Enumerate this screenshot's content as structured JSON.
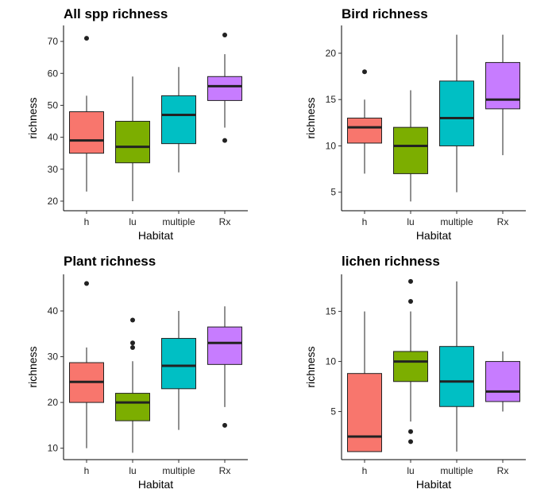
{
  "chart_data": [
    {
      "type": "boxplot",
      "title": "All spp richness",
      "xlabel": "Habitat",
      "ylabel": "richness",
      "categories": [
        "h",
        "lu",
        "multiple",
        "Rx"
      ],
      "ylim": [
        17,
        75
      ],
      "yticks": [
        20,
        30,
        40,
        50,
        60,
        70
      ],
      "colors": [
        "#F8766D",
        "#7CAE00",
        "#00BFC4",
        "#C77CFF"
      ],
      "boxes": [
        {
          "low": 23,
          "q1": 35,
          "median": 39,
          "q3": 48,
          "high": 53,
          "outliers": [
            71
          ]
        },
        {
          "low": 20,
          "q1": 32,
          "median": 37,
          "q3": 45,
          "high": 59,
          "outliers": []
        },
        {
          "low": 29,
          "q1": 38,
          "median": 47,
          "q3": 53,
          "high": 62,
          "outliers": []
        },
        {
          "low": 43,
          "q1": 51.5,
          "median": 56,
          "q3": 59,
          "high": 66,
          "outliers": [
            39,
            72
          ]
        }
      ]
    },
    {
      "type": "boxplot",
      "title": "Bird richness",
      "xlabel": "Habitat",
      "ylabel": "richness",
      "categories": [
        "h",
        "lu",
        "multiple",
        "Rx"
      ],
      "ylim": [
        3,
        23
      ],
      "yticks": [
        5,
        10,
        15,
        20
      ],
      "colors": [
        "#F8766D",
        "#7CAE00",
        "#00BFC4",
        "#C77CFF"
      ],
      "boxes": [
        {
          "low": 7,
          "q1": 10.3,
          "median": 12,
          "q3": 13,
          "high": 15,
          "outliers": [
            18
          ]
        },
        {
          "low": 4,
          "q1": 7,
          "median": 10,
          "q3": 12,
          "high": 16,
          "outliers": []
        },
        {
          "low": 5,
          "q1": 10,
          "median": 13,
          "q3": 17,
          "high": 22,
          "outliers": []
        },
        {
          "low": 9,
          "q1": 14,
          "median": 15,
          "q3": 19,
          "high": 22,
          "outliers": []
        }
      ]
    },
    {
      "type": "boxplot",
      "title": "Plant richness",
      "xlabel": "Habitat",
      "ylabel": "richness",
      "categories": [
        "h",
        "lu",
        "multiple",
        "Rx"
      ],
      "ylim": [
        7.5,
        48
      ],
      "yticks": [
        10,
        20,
        30,
        40
      ],
      "colors": [
        "#F8766D",
        "#7CAE00",
        "#00BFC4",
        "#C77CFF"
      ],
      "boxes": [
        {
          "low": 10,
          "q1": 20,
          "median": 24.5,
          "q3": 28.7,
          "high": 32,
          "outliers": [
            46
          ]
        },
        {
          "low": 9,
          "q1": 16,
          "median": 20,
          "q3": 22,
          "high": 29,
          "outliers": [
            32,
            33,
            38
          ]
        },
        {
          "low": 14,
          "q1": 23,
          "median": 28,
          "q3": 34,
          "high": 40,
          "outliers": []
        },
        {
          "low": 19,
          "q1": 28.3,
          "median": 33,
          "q3": 36.5,
          "high": 41,
          "outliers": [
            15
          ]
        }
      ]
    },
    {
      "type": "boxplot",
      "title": "lichen richness",
      "xlabel": "Habitat",
      "ylabel": "richness",
      "categories": [
        "h",
        "lu",
        "multiple",
        "Rx"
      ],
      "ylim": [
        0.2,
        18.7
      ],
      "yticks": [
        5,
        10,
        15
      ],
      "colors": [
        "#F8766D",
        "#7CAE00",
        "#00BFC4",
        "#C77CFF"
      ],
      "boxes": [
        {
          "low": 1,
          "q1": 1,
          "median": 2.5,
          "q3": 8.8,
          "high": 15,
          "outliers": []
        },
        {
          "low": 4,
          "q1": 8,
          "median": 10,
          "q3": 11,
          "high": 15,
          "outliers": [
            2,
            3,
            16,
            18
          ]
        },
        {
          "low": 1,
          "q1": 5.5,
          "median": 8,
          "q3": 11.5,
          "high": 18,
          "outliers": []
        },
        {
          "low": 5,
          "q1": 6,
          "median": 7,
          "q3": 10,
          "high": 11,
          "outliers": []
        }
      ]
    }
  ]
}
